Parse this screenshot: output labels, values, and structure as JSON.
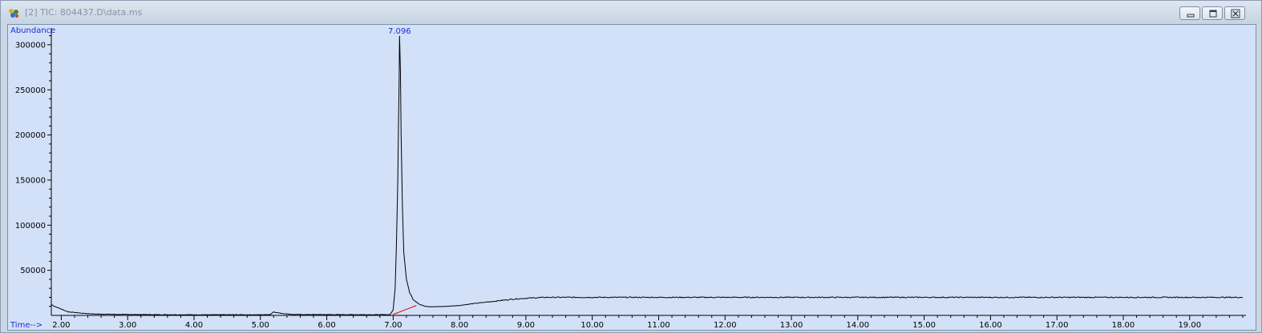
{
  "window": {
    "title": "[2] TIC: 804437.D\\data.ms",
    "icon": "chromatogram-app-icon",
    "controls": [
      "minimize-icon",
      "restore-icon",
      "close-icon"
    ]
  },
  "colors": {
    "plot_background": "#d3e1f8",
    "trace": "#000000",
    "baseline": "#e00000",
    "label_text": "#1a2fd0"
  },
  "chart_data": {
    "type": "line",
    "title": "",
    "ylabel": "Abundance",
    "xlabel": "Time-->",
    "xlim": [
      1.85,
      19.8
    ],
    "ylim": [
      0,
      315000
    ],
    "x_ticks": [
      2.0,
      3.0,
      4.0,
      5.0,
      6.0,
      7.0,
      8.0,
      9.0,
      10.0,
      11.0,
      12.0,
      13.0,
      14.0,
      15.0,
      16.0,
      17.0,
      18.0,
      19.0
    ],
    "x_tick_labels": [
      "2.00",
      "3.00",
      "4.00",
      "5.00",
      "6.00",
      "7.00",
      "8.00",
      "9.00",
      "10.00",
      "11.00",
      "12.00",
      "13.00",
      "14.00",
      "15.00",
      "16.00",
      "17.00",
      "18.00",
      "19.00"
    ],
    "y_ticks": [
      50000,
      100000,
      150000,
      200000,
      250000,
      300000
    ],
    "y_tick_labels": [
      "50000",
      "100000",
      "150000",
      "200000",
      "250000",
      "300000"
    ],
    "grid": false,
    "peak_labels": [
      {
        "x": 7.096,
        "text": "7.096"
      }
    ],
    "baseline_segment": [
      [
        7.0,
        1000
      ],
      [
        7.35,
        11000
      ]
    ],
    "series": [
      {
        "x": [
          1.85,
          1.9,
          2.0,
          2.1,
          2.3,
          2.5,
          3.0,
          3.5,
          4.0,
          4.5,
          5.0,
          5.15,
          5.2,
          5.25,
          5.35,
          5.5,
          5.8,
          6.0,
          6.5,
          6.95,
          7.0,
          7.03,
          7.05,
          7.07,
          7.08,
          7.09,
          7.096,
          7.1,
          7.11,
          7.12,
          7.14,
          7.16,
          7.2,
          7.25,
          7.3,
          7.4,
          7.5,
          7.6,
          7.8,
          8.0,
          8.2,
          8.5,
          8.8,
          9.0,
          9.3,
          9.6,
          10.0,
          11.0,
          12.0,
          13.0,
          14.0,
          15.0,
          16.0,
          17.0,
          18.0,
          19.0,
          19.8
        ],
        "y": [
          12000,
          10000,
          7000,
          4000,
          2500,
          1500,
          1000,
          800,
          700,
          700,
          700,
          1000,
          4000,
          3000,
          2000,
          1000,
          900,
          900,
          800,
          800,
          6000,
          30000,
          80000,
          150000,
          210000,
          260000,
          310000,
          300000,
          270000,
          200000,
          120000,
          70000,
          40000,
          25000,
          18000,
          12000,
          10000,
          9500,
          10000,
          11000,
          13000,
          15500,
          18000,
          19000,
          20000,
          20000,
          20000,
          20000,
          20000,
          20000,
          20000,
          20000,
          20000,
          20000,
          20000,
          20000,
          20000
        ]
      }
    ]
  }
}
